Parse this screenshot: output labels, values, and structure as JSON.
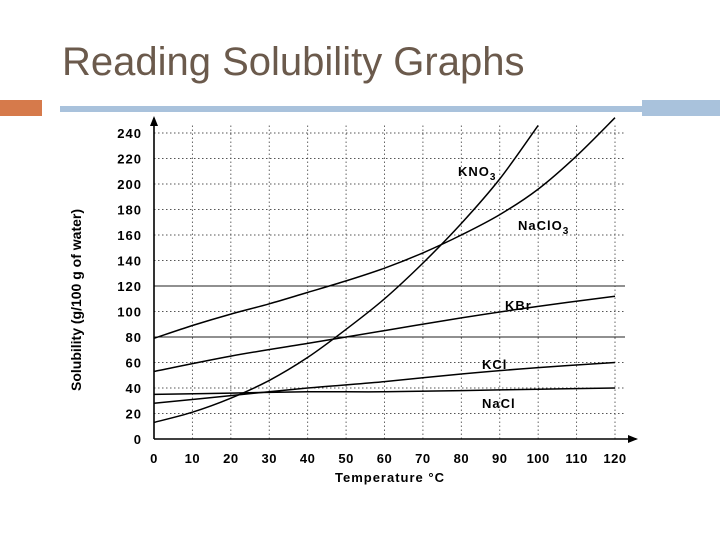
{
  "slide": {
    "title": "Reading Solubility Graphs",
    "colors": {
      "title": "#6b5a4c",
      "accent_orange": "#d67a4b",
      "accent_blue": "#a9c2dc"
    }
  },
  "chart_data": {
    "type": "line",
    "title": "",
    "xlabel": "Temperature  °C",
    "ylabel": "Solubility (g/100 g of water)",
    "xlim": [
      0,
      120
    ],
    "ylim": [
      0,
      250
    ],
    "x_ticks": [
      0,
      10,
      20,
      30,
      40,
      50,
      60,
      70,
      80,
      90,
      100,
      110,
      120
    ],
    "y_ticks": [
      0,
      20,
      40,
      60,
      80,
      100,
      120,
      140,
      160,
      180,
      200,
      220,
      240
    ],
    "grid": true,
    "series": [
      {
        "name": "KNO3",
        "label": "KNO",
        "subscript": "3",
        "x": [
          0,
          10,
          20,
          30,
          40,
          50,
          60,
          70,
          80,
          90,
          100
        ],
        "y": [
          13,
          21,
          32,
          46,
          64,
          86,
          110,
          138,
          169,
          204,
          246
        ]
      },
      {
        "name": "NaClO3",
        "label": "NaClO",
        "subscript": "3",
        "x": [
          0,
          10,
          20,
          30,
          40,
          50,
          60,
          70,
          80,
          90,
          100,
          110,
          120
        ],
        "y": [
          79,
          89,
          98,
          106,
          115,
          124,
          134,
          146,
          160,
          176,
          196,
          222,
          252
        ]
      },
      {
        "name": "KBr",
        "label": "KBr",
        "subscript": "",
        "x": [
          0,
          20,
          40,
          60,
          80,
          100,
          120
        ],
        "y": [
          53,
          65,
          75,
          85,
          95,
          104,
          112
        ]
      },
      {
        "name": "KCl",
        "label": "KCl",
        "subscript": "",
        "x": [
          0,
          20,
          40,
          60,
          80,
          100,
          120
        ],
        "y": [
          28,
          34,
          40,
          45,
          51,
          56,
          60
        ]
      },
      {
        "name": "NaCl",
        "label": "NaCl",
        "subscript": "",
        "x": [
          0,
          20,
          40,
          60,
          80,
          100,
          120
        ],
        "y": [
          35,
          36,
          37,
          37,
          38,
          39,
          40
        ]
      }
    ]
  }
}
